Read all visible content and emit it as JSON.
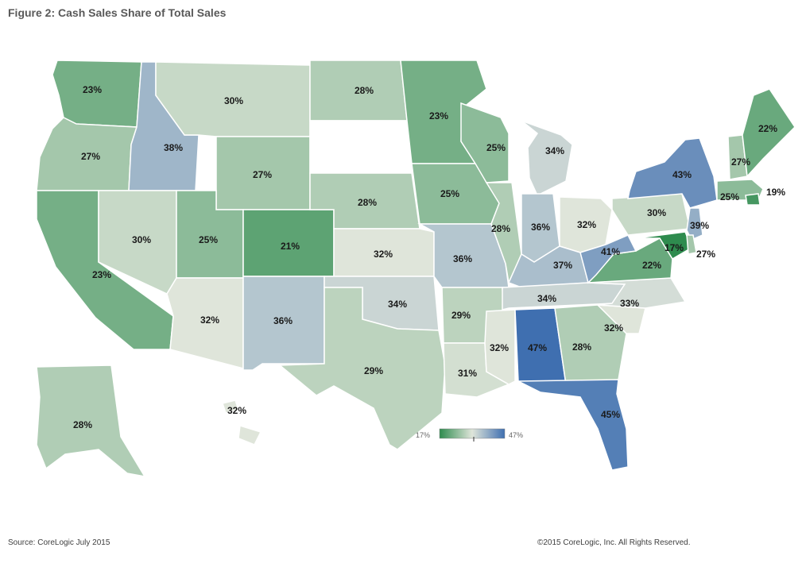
{
  "title": "Figure 2: Cash Sales Share of Total Sales",
  "source": "Source: CoreLogic July 2015",
  "copyright": "©2015 CoreLogic, Inc. All Rights Reserved.",
  "legend": {
    "min_label": "17%",
    "max_label": "47%",
    "min_color": "#2e8b4e",
    "mid_color": "#dfe5da",
    "max_color": "#3f6fb0"
  },
  "map_data": {
    "type": "choropleth",
    "measure": "Cash sales share of total sales",
    "states": [
      {
        "state": "WA",
        "label": "23%"
      },
      {
        "state": "OR",
        "label": "27%"
      },
      {
        "state": "CA",
        "label": "23%"
      },
      {
        "state": "ID",
        "label": "38%"
      },
      {
        "state": "NV",
        "label": "30%"
      },
      {
        "state": "MT",
        "label": "30%"
      },
      {
        "state": "WY",
        "label": "27%"
      },
      {
        "state": "UT",
        "label": "25%"
      },
      {
        "state": "AZ",
        "label": "32%"
      },
      {
        "state": "CO",
        "label": "21%"
      },
      {
        "state": "NM",
        "label": "36%"
      },
      {
        "state": "ND",
        "label": "28%"
      },
      {
        "state": "SD",
        "label": ""
      },
      {
        "state": "NE",
        "label": "28%"
      },
      {
        "state": "KS",
        "label": "32%"
      },
      {
        "state": "OK",
        "label": "34%"
      },
      {
        "state": "TX",
        "label": "29%"
      },
      {
        "state": "MN",
        "label": "23%"
      },
      {
        "state": "IA",
        "label": "25%"
      },
      {
        "state": "MO",
        "label": "36%"
      },
      {
        "state": "AR",
        "label": "29%"
      },
      {
        "state": "LA",
        "label": "31%"
      },
      {
        "state": "WI",
        "label": "25%"
      },
      {
        "state": "IL",
        "label": "28%"
      },
      {
        "state": "MI",
        "label": "34%"
      },
      {
        "state": "IN",
        "label": "36%"
      },
      {
        "state": "OH",
        "label": "32%"
      },
      {
        "state": "KY",
        "label": "37%"
      },
      {
        "state": "TN",
        "label": "34%"
      },
      {
        "state": "MS",
        "label": "32%"
      },
      {
        "state": "AL",
        "label": "47%"
      },
      {
        "state": "GA",
        "label": "28%"
      },
      {
        "state": "FL",
        "label": "45%"
      },
      {
        "state": "SC",
        "label": "32%"
      },
      {
        "state": "NC",
        "label": "33%"
      },
      {
        "state": "VA",
        "label": "22%"
      },
      {
        "state": "WV",
        "label": "41%"
      },
      {
        "state": "PA",
        "label": "30%"
      },
      {
        "state": "NY",
        "label": "43%"
      },
      {
        "state": "NJ",
        "label": "39%"
      },
      {
        "state": "MD",
        "label": "17%"
      },
      {
        "state": "DE",
        "label": "27%"
      },
      {
        "state": "MA",
        "label": "25%"
      },
      {
        "state": "RI",
        "label": "19%"
      },
      {
        "state": "NH",
        "label": "27%"
      },
      {
        "state": "ME",
        "label": "22%"
      },
      {
        "state": "AK",
        "label": "28%"
      },
      {
        "state": "HI",
        "label": "32%"
      }
    ]
  }
}
